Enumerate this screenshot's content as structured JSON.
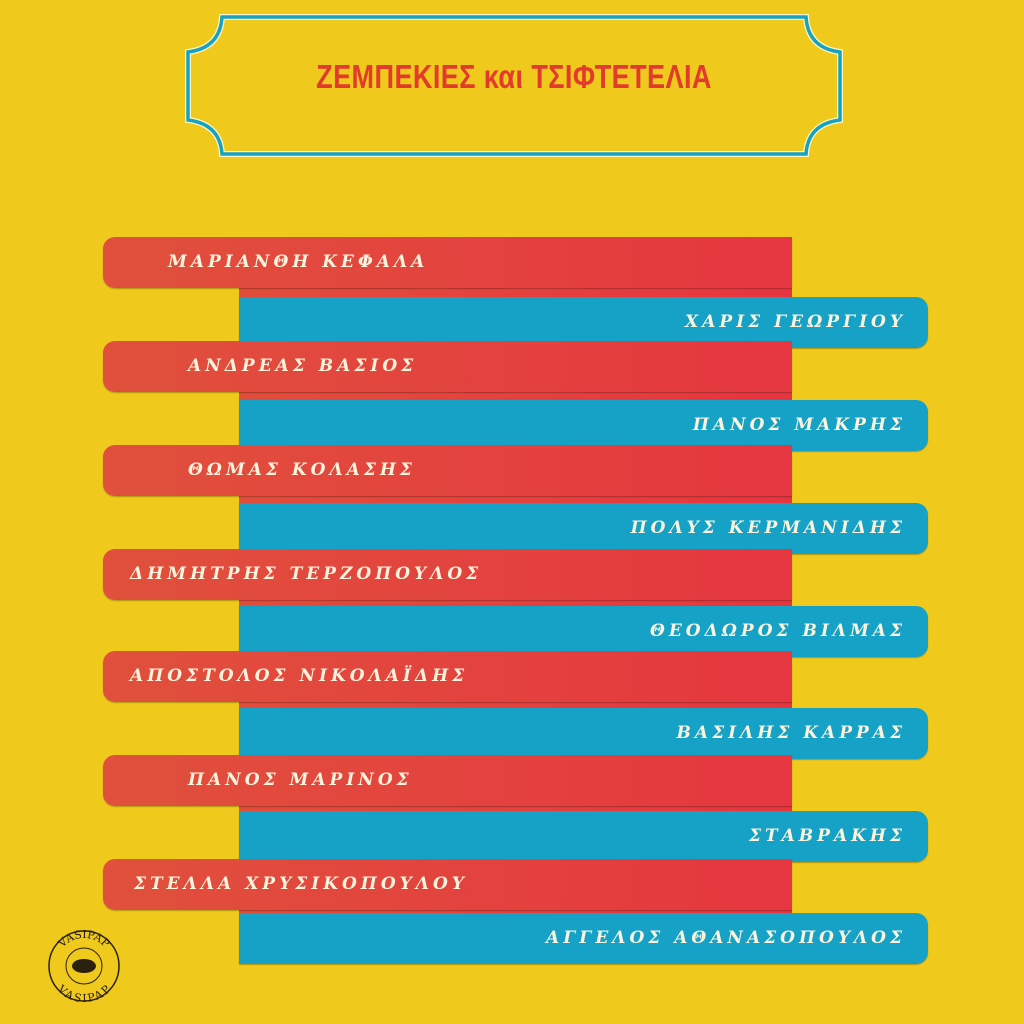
{
  "title": "ΖΕΜΠΕΚΙΕΣ και ΤΣΙΦΤΕΤΕΛΙΑ",
  "colors": {
    "background": "#efc91b",
    "red": "#e5373f",
    "blue": "#16a2c6",
    "title": "#e23a2c",
    "frame": "#17a3bf"
  },
  "artists_red": [
    "ΜΑΡΙΑΝΘΗ ΚΕΦΑΛΑ",
    "ΑΝΔΡΕΑΣ ΒΑΣΙΟΣ",
    "ΘΩΜΑΣ ΚΟΛΑΣΗΣ",
    "ΔΗΜΗΤΡΗΣ ΤΕΡΖΟΠΟΥΛΟΣ",
    "ΑΠΟΣΤΟΛΟΣ ΝΙΚΟΛΑΪΔΗΣ",
    "ΠΑΝΟΣ ΜΑΡΙΝΟΣ",
    "ΣΤΕΛΛΑ ΧΡΥΣΙΚΟΠΟΥΛΟΥ"
  ],
  "artists_blue": [
    "ΧΑΡΙΣ ΓΕΩΡΓΙΟΥ",
    "ΠΑΝΟΣ ΜΑΚΡΗΣ",
    "ΠΟΛΥΣ ΚΕΡΜΑΝΙΔΗΣ",
    "ΘΕΟΔΩΡΟΣ ΒΙΛΜΑΣ",
    "ΒΑΣΙΛΗΣ ΚΑΡΡΑΣ",
    "ΣΤΑΒΡΑΚΗΣ",
    "ΑΓΓΕΛΟΣ ΑΘΑΝΑΣΟΠΟΥΛΟΣ"
  ],
  "logo": "VASIPAP"
}
